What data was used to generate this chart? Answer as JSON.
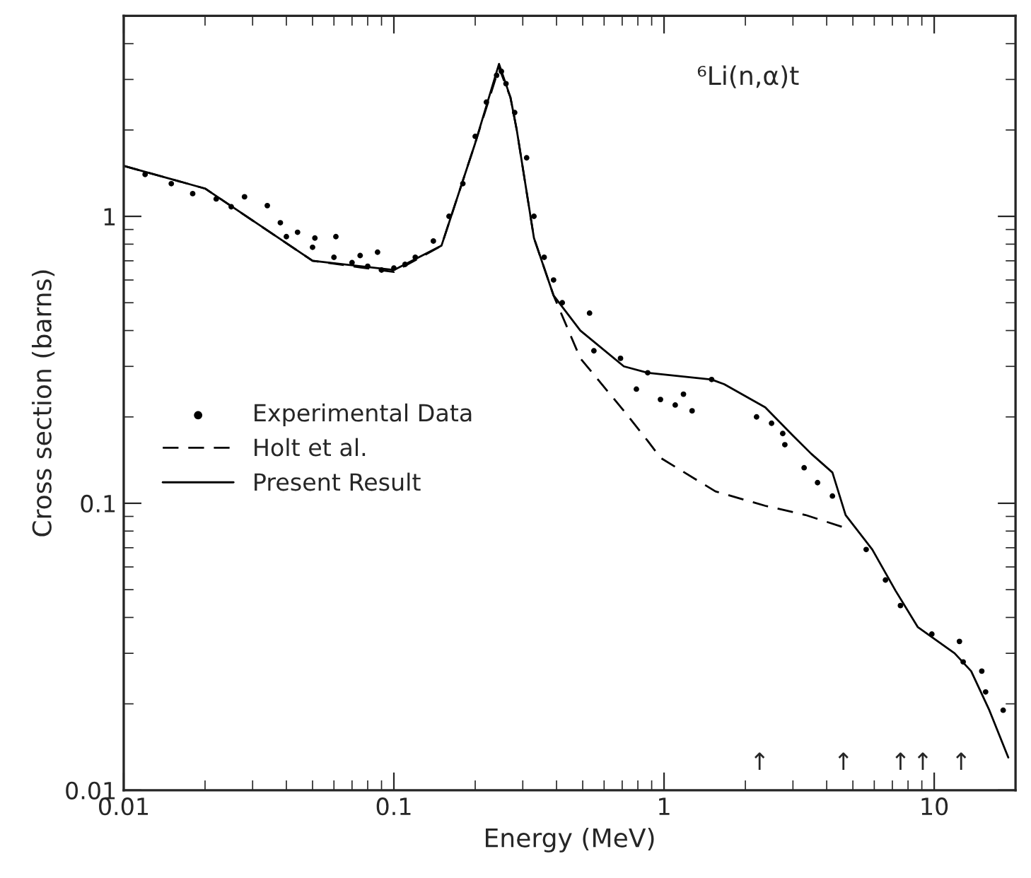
{
  "chart_data": {
    "type": "line",
    "xlabel": "Energy (MeV)",
    "ylabel": "Cross section (barns)",
    "log": "xy",
    "xlim": [
      0.01,
      20
    ],
    "ylim": [
      0.01,
      5
    ],
    "xticks": [
      0.01,
      0.1,
      1,
      10
    ],
    "yticks": [
      0.01,
      0.1,
      1
    ],
    "grid": false,
    "legend": "left",
    "series": [
      {
        "name": "Experimental Data",
        "type": "scatter",
        "marker": "circle",
        "color": "#000000",
        "x": [
          0.012,
          0.015,
          0.018,
          0.022,
          0.025,
          0.028,
          0.034,
          0.038,
          0.044,
          0.051,
          0.061,
          0.075,
          0.087,
          0.04,
          0.05,
          0.06,
          0.07,
          0.08,
          0.09,
          0.1,
          0.11,
          0.12,
          0.14,
          0.16,
          0.18,
          0.2,
          0.22,
          0.24,
          0.25,
          0.26,
          0.28,
          0.31,
          0.33,
          0.36,
          0.39,
          0.42,
          0.53,
          0.55,
          0.69,
          0.87,
          0.79,
          0.97,
          1.1,
          1.18,
          1.27,
          1.5,
          2.2,
          2.5,
          2.75,
          2.8,
          3.3,
          3.7,
          4.2,
          5.6,
          6.6,
          7.5,
          9.8,
          12.4,
          12.8,
          15,
          15.5,
          18
        ],
        "values": [
          1.4,
          1.3,
          1.2,
          1.15,
          1.08,
          1.17,
          1.09,
          0.95,
          0.88,
          0.84,
          0.85,
          0.73,
          0.75,
          0.85,
          0.78,
          0.72,
          0.69,
          0.67,
          0.65,
          0.66,
          0.68,
          0.72,
          0.82,
          1.0,
          1.3,
          1.9,
          2.5,
          3.1,
          3.2,
          2.9,
          2.3,
          1.6,
          1.0,
          0.72,
          0.6,
          0.5,
          0.46,
          0.34,
          0.32,
          0.285,
          0.25,
          0.23,
          0.22,
          0.24,
          0.21,
          0.27,
          0.2,
          0.19,
          0.175,
          0.16,
          0.133,
          0.118,
          0.106,
          0.069,
          0.054,
          0.044,
          0.035,
          0.033,
          0.028,
          0.026,
          0.022,
          0.019
        ]
      },
      {
        "name": "Holt et al.",
        "line_style": "dashed",
        "color": "#000000",
        "x": [
          0.01,
          0.02,
          0.05,
          0.1,
          0.15,
          0.2,
          0.245,
          0.27,
          0.285,
          0.33,
          0.39,
          0.49,
          0.71,
          0.87,
          0.97,
          1.55,
          2.37,
          3.34,
          4.7
        ],
        "values": [
          1.5,
          1.25,
          0.7,
          0.64,
          0.79,
          1.8,
          3.3,
          2.6,
          2.0,
          0.84,
          0.53,
          0.32,
          0.21,
          0.165,
          0.144,
          0.11,
          0.098,
          0.091,
          0.082
        ]
      },
      {
        "name": "Present Result",
        "line_style": "solid",
        "color": "#000000",
        "x": [
          0.01,
          0.02,
          0.05,
          0.1,
          0.15,
          0.2,
          0.245,
          0.27,
          0.285,
          0.33,
          0.39,
          0.49,
          0.71,
          0.87,
          1.5,
          1.67,
          2.37,
          3.0,
          3.5,
          4.2,
          4.7,
          5.9,
          7.2,
          8.7,
          11.9,
          13.7,
          16,
          18.8
        ],
        "values": [
          1.5,
          1.25,
          0.7,
          0.65,
          0.79,
          1.8,
          3.4,
          2.6,
          2.0,
          0.84,
          0.53,
          0.4,
          0.3,
          0.285,
          0.27,
          0.26,
          0.216,
          0.172,
          0.149,
          0.128,
          0.091,
          0.069,
          0.0495,
          0.037,
          0.03,
          0.026,
          0.019,
          0.013
        ]
      }
    ],
    "annotations": [
      "⁶Li(n,α)t",
      "↑",
      "↑",
      "↑",
      "↑",
      "↑"
    ]
  }
}
